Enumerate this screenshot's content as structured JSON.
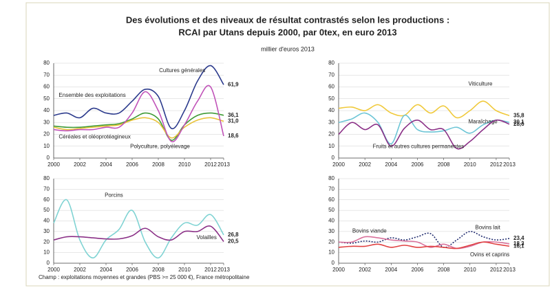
{
  "title": "Des évolutions et des niveaux de résultat contrastés selon les productions :",
  "title2": "RCAI par Utans depuis 2000, par 0tex, en euro 2013",
  "subtitle": "millier d'euros 2013",
  "note": "Champ : exploitations moyennes et grandes (PBS >= 25 000 €), France métropolitaine",
  "chart_data": [
    {
      "type": "line",
      "x": [
        2000,
        2001,
        2002,
        2003,
        2004,
        2005,
        2006,
        2007,
        2008,
        2009,
        2010,
        2011,
        2012,
        2013
      ],
      "xlim": [
        2000,
        2013
      ],
      "xticks": [
        2000,
        2002,
        2004,
        2006,
        2008,
        2010,
        2012,
        2013
      ],
      "ylim": [
        0,
        80
      ],
      "yticks": [
        0,
        10,
        20,
        30,
        40,
        50,
        60,
        70,
        80
      ],
      "grid": true,
      "series": [
        {
          "name": "Cultures générales",
          "color": "#2b3a8c",
          "values": [
            36,
            38,
            34,
            42,
            38,
            38,
            48,
            58,
            52,
            25,
            40,
            65,
            78,
            61.9
          ],
          "value_labels": [
            null,
            null,
            null,
            null,
            null,
            null,
            null,
            null,
            null,
            null,
            null,
            null,
            null,
            "61,9"
          ]
        },
        {
          "name": "Ensemble des exploitations",
          "color": "#3f9a35",
          "values": [
            27,
            26,
            26,
            27,
            28,
            29,
            33,
            38,
            33,
            15,
            28,
            36,
            38,
            36.1
          ],
          "value_labels": [
            null,
            null,
            null,
            null,
            null,
            null,
            null,
            null,
            null,
            null,
            null,
            null,
            null,
            "36,1"
          ]
        },
        {
          "name": "Polyculture, polyélevage",
          "color": "#e8c23a",
          "values": [
            26,
            24,
            25,
            26,
            27,
            28,
            32,
            34,
            30,
            17,
            26,
            32,
            34,
            31.0
          ],
          "value_labels": [
            null,
            null,
            null,
            null,
            null,
            null,
            null,
            null,
            null,
            null,
            null,
            null,
            null,
            "31,0"
          ]
        },
        {
          "name": "Céréales et oléoprotéagineux",
          "color": "#c052b8",
          "values": [
            24,
            23,
            24,
            24,
            26,
            26,
            38,
            56,
            40,
            14,
            28,
            48,
            60,
            18.6
          ],
          "value_labels": [
            null,
            null,
            null,
            null,
            null,
            null,
            null,
            null,
            null,
            null,
            null,
            null,
            null,
            "18,6"
          ]
        }
      ]
    },
    {
      "type": "line",
      "x": [
        2000,
        2001,
        2002,
        2003,
        2004,
        2005,
        2006,
        2007,
        2008,
        2009,
        2010,
        2011,
        2012,
        2013
      ],
      "xlim": [
        2000,
        2013
      ],
      "xticks": [
        2000,
        2002,
        2004,
        2006,
        2008,
        2010,
        2012,
        2013
      ],
      "ylim": [
        0,
        80
      ],
      "yticks": [
        0,
        10,
        20,
        30,
        40,
        50,
        60,
        70,
        80
      ],
      "grid": true,
      "series": [
        {
          "name": "Viticulture",
          "color": "#f0c93a",
          "values": [
            42,
            43,
            40,
            45,
            38,
            36,
            45,
            38,
            44,
            34,
            40,
            48,
            40,
            35.8
          ],
          "value_labels": [
            null,
            null,
            null,
            null,
            null,
            null,
            null,
            null,
            null,
            null,
            null,
            null,
            null,
            "35,8"
          ]
        },
        {
          "name": "Maraîchage",
          "color": "#6cc5d6",
          "values": [
            30,
            33,
            38,
            30,
            12,
            36,
            24,
            22,
            23,
            26,
            21,
            28,
            32,
            30.1
          ],
          "value_labels": [
            null,
            null,
            null,
            null,
            null,
            null,
            null,
            null,
            null,
            null,
            null,
            null,
            null,
            "30,1"
          ]
        },
        {
          "name": "Fruits et autres cultures permanentes",
          "color": "#8a2f86",
          "values": [
            20,
            30,
            24,
            28,
            10,
            25,
            32,
            24,
            24,
            8,
            14,
            24,
            32,
            28.6
          ],
          "value_labels": [
            null,
            null,
            null,
            null,
            null,
            null,
            null,
            null,
            null,
            null,
            null,
            null,
            null,
            "28,6"
          ]
        }
      ]
    },
    {
      "type": "line",
      "x": [
        2000,
        2001,
        2002,
        2003,
        2004,
        2005,
        2006,
        2007,
        2008,
        2009,
        2010,
        2011,
        2012,
        2013
      ],
      "xlim": [
        2000,
        2013
      ],
      "xticks": [
        2000,
        2002,
        2004,
        2006,
        2008,
        2010,
        2012,
        2013
      ],
      "ylim": [
        0,
        80
      ],
      "yticks": [
        0,
        10,
        20,
        30,
        40,
        50,
        60,
        70,
        80
      ],
      "grid": true,
      "series": [
        {
          "name": "Porcins",
          "color": "#7fd3d3",
          "values": [
            38,
            60,
            22,
            5,
            22,
            32,
            50,
            20,
            5,
            24,
            38,
            36,
            46,
            26.8
          ],
          "value_labels": [
            null,
            null,
            null,
            null,
            null,
            null,
            null,
            null,
            null,
            null,
            null,
            null,
            null,
            "26,8"
          ]
        },
        {
          "name": "Volailles",
          "color": "#8a2f86",
          "values": [
            22,
            25,
            25,
            24,
            23,
            23,
            26,
            33,
            25,
            22,
            30,
            30,
            35,
            20.5
          ],
          "value_labels": [
            null,
            null,
            null,
            null,
            null,
            null,
            null,
            null,
            null,
            null,
            null,
            null,
            null,
            "20,5"
          ]
        }
      ]
    },
    {
      "type": "line",
      "x": [
        2000,
        2001,
        2002,
        2003,
        2004,
        2005,
        2006,
        2007,
        2008,
        2009,
        2010,
        2011,
        2012,
        2013
      ],
      "xlim": [
        2000,
        2013
      ],
      "xticks": [
        2000,
        2002,
        2004,
        2006,
        2008,
        2010,
        2012,
        2013
      ],
      "ylim": [
        0,
        80
      ],
      "yticks": [
        0,
        10,
        20,
        30,
        40,
        50,
        60,
        70,
        80
      ],
      "grid": true,
      "series": [
        {
          "name": "Bovins lait",
          "color": "#1f2a6e",
          "dashed": true,
          "values": [
            20,
            19,
            21,
            20,
            24,
            22,
            25,
            28,
            15,
            22,
            30,
            25,
            22,
            23.4
          ],
          "value_labels": [
            null,
            null,
            null,
            null,
            null,
            null,
            null,
            null,
            null,
            null,
            null,
            null,
            null,
            "23,4"
          ]
        },
        {
          "name": "Bovins viande",
          "color": "#d9709a",
          "values": [
            20,
            20,
            25,
            24,
            22,
            21,
            20,
            15,
            18,
            14,
            16,
            20,
            20,
            18.3
          ],
          "value_labels": [
            null,
            null,
            null,
            null,
            null,
            null,
            null,
            null,
            null,
            null,
            null,
            null,
            null,
            "18,3"
          ]
        },
        {
          "name": "Ovins et caprins",
          "color": "#e04040",
          "values": [
            15,
            16,
            16,
            18,
            15,
            17,
            15,
            16,
            15,
            14,
            17,
            20,
            18,
            16.1
          ],
          "value_labels": [
            null,
            null,
            null,
            null,
            null,
            null,
            null,
            null,
            null,
            null,
            null,
            null,
            null,
            "16,1"
          ]
        }
      ]
    }
  ]
}
